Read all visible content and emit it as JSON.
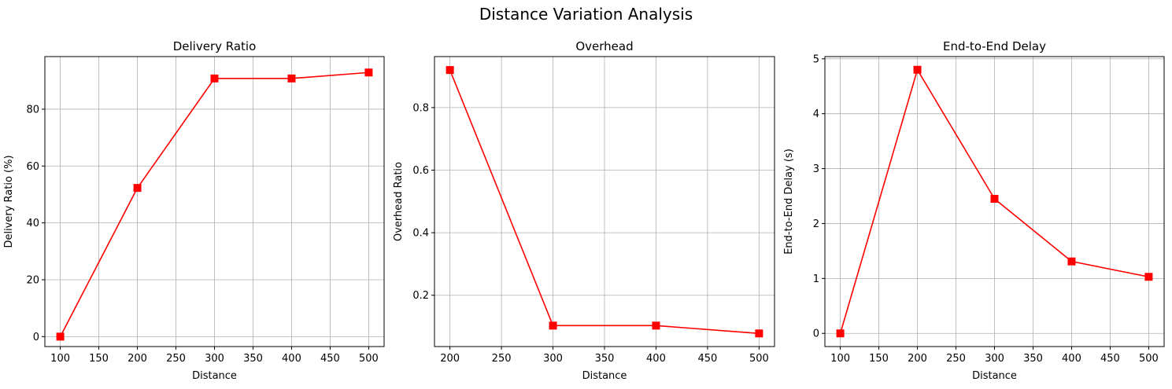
{
  "figure": {
    "title": "Distance Variation Analysis"
  },
  "chart_data": [
    {
      "type": "line",
      "title": "Delivery Ratio",
      "xlabel": "Distance",
      "ylabel": "Delivery Ratio (%)",
      "x": [
        100,
        200,
        300,
        400,
        500
      ],
      "y": [
        0,
        52.3,
        90.8,
        90.8,
        92.9
      ],
      "xlim": [
        80,
        520
      ],
      "ylim": [
        -3.5,
        98.5
      ],
      "xticks": [
        100,
        150,
        200,
        250,
        300,
        350,
        400,
        450,
        500
      ],
      "yticks": [
        0,
        20,
        40,
        60,
        80
      ],
      "grid": true,
      "color": "#ff0000",
      "marker": "square"
    },
    {
      "type": "line",
      "title": "Overhead",
      "xlabel": "Distance",
      "ylabel": "Overhead Ratio",
      "x": [
        200,
        300,
        400,
        500
      ],
      "y": [
        0.92,
        0.103,
        0.103,
        0.078
      ],
      "xlim": [
        185,
        515
      ],
      "ylim": [
        0.036,
        0.963
      ],
      "xticks": [
        200,
        250,
        300,
        350,
        400,
        450,
        500
      ],
      "yticks": [
        0.2,
        0.4,
        0.6,
        0.8
      ],
      "grid": true,
      "color": "#ff0000",
      "marker": "square"
    },
    {
      "type": "line",
      "title": "End-to-End Delay",
      "xlabel": "Distance",
      "ylabel": "End-to-End Delay (s)",
      "x": [
        100,
        200,
        300,
        400,
        500
      ],
      "y": [
        0,
        4.8,
        2.45,
        1.31,
        1.03
      ],
      "xlim": [
        80,
        520
      ],
      "ylim": [
        -0.24,
        5.04
      ],
      "xticks": [
        100,
        150,
        200,
        250,
        300,
        350,
        400,
        450,
        500
      ],
      "yticks": [
        0,
        1,
        2,
        3,
        4,
        5
      ],
      "grid": true,
      "color": "#ff0000",
      "marker": "square"
    }
  ]
}
